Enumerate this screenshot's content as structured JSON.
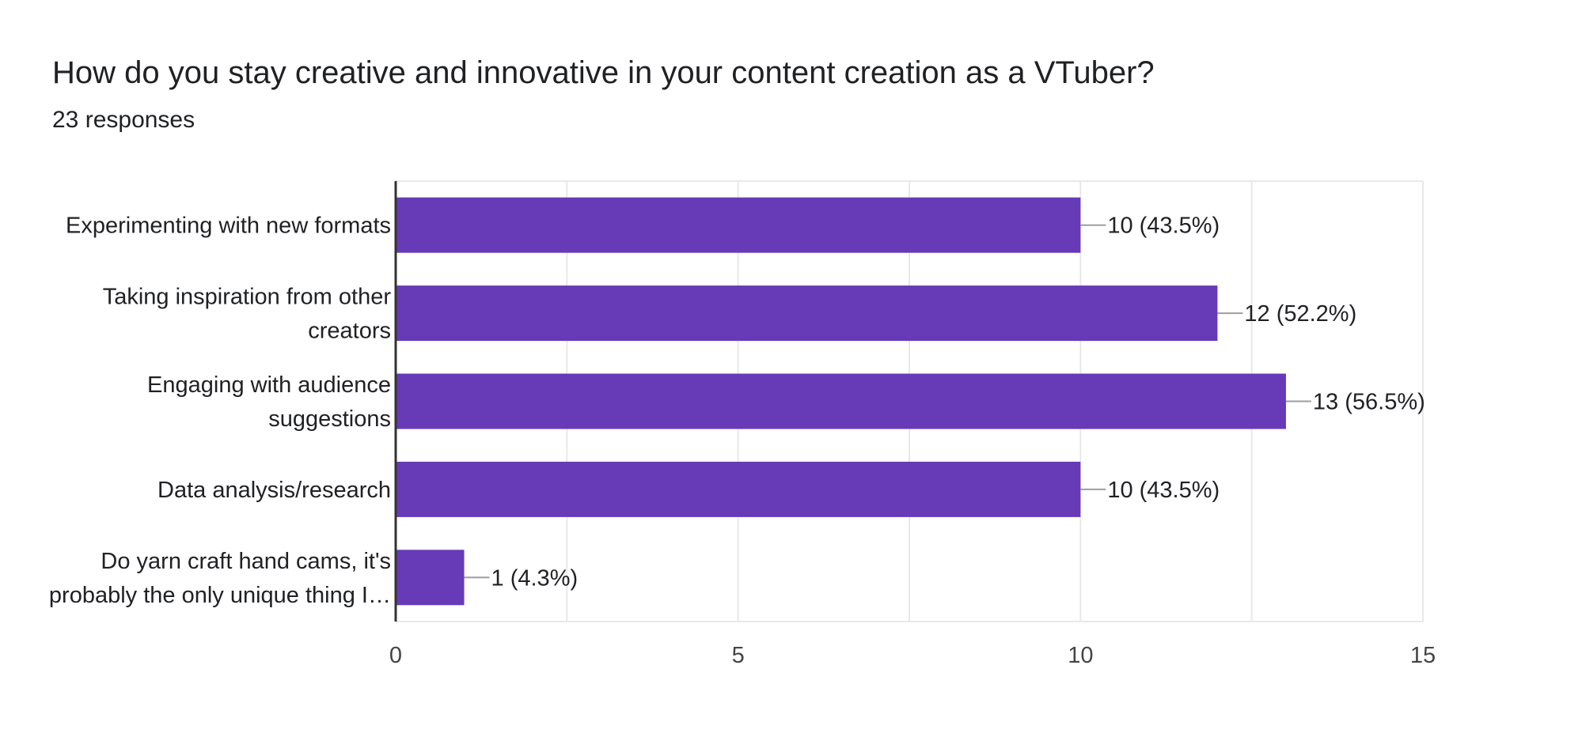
{
  "header": {
    "title": "How do you stay creative and innovative in your content creation as a VTuber?",
    "responses": "23 responses"
  },
  "colors": {
    "bar": "#673ab7",
    "grid": "#e8e8e8",
    "axis": "#333333",
    "leader": "#9e9e9e"
  },
  "chart_data": {
    "type": "bar",
    "orientation": "horizontal",
    "title": "How do you stay creative and innovative in your content creation as a VTuber?",
    "subtitle": "23 responses",
    "categories": [
      [
        "Experimenting with new formats"
      ],
      [
        "Taking inspiration from other",
        "creators"
      ],
      [
        "Engaging with audience",
        "suggestions"
      ],
      [
        "Data analysis/research"
      ],
      [
        "Do yarn craft hand cams, it's",
        "probably the only unique thing I…"
      ]
    ],
    "values": [
      10,
      12,
      13,
      10,
      1
    ],
    "value_labels": [
      "10 (43.5%)",
      "12 (52.2%)",
      "13 (56.5%)",
      "10 (43.5%)",
      "1 (4.3%)"
    ],
    "xlim": [
      0,
      15
    ],
    "xticks": [
      0,
      5,
      10,
      15
    ],
    "xtick_labels": [
      "0",
      "5",
      "10",
      "15"
    ],
    "grid": true,
    "xlabel": "",
    "ylabel": ""
  }
}
